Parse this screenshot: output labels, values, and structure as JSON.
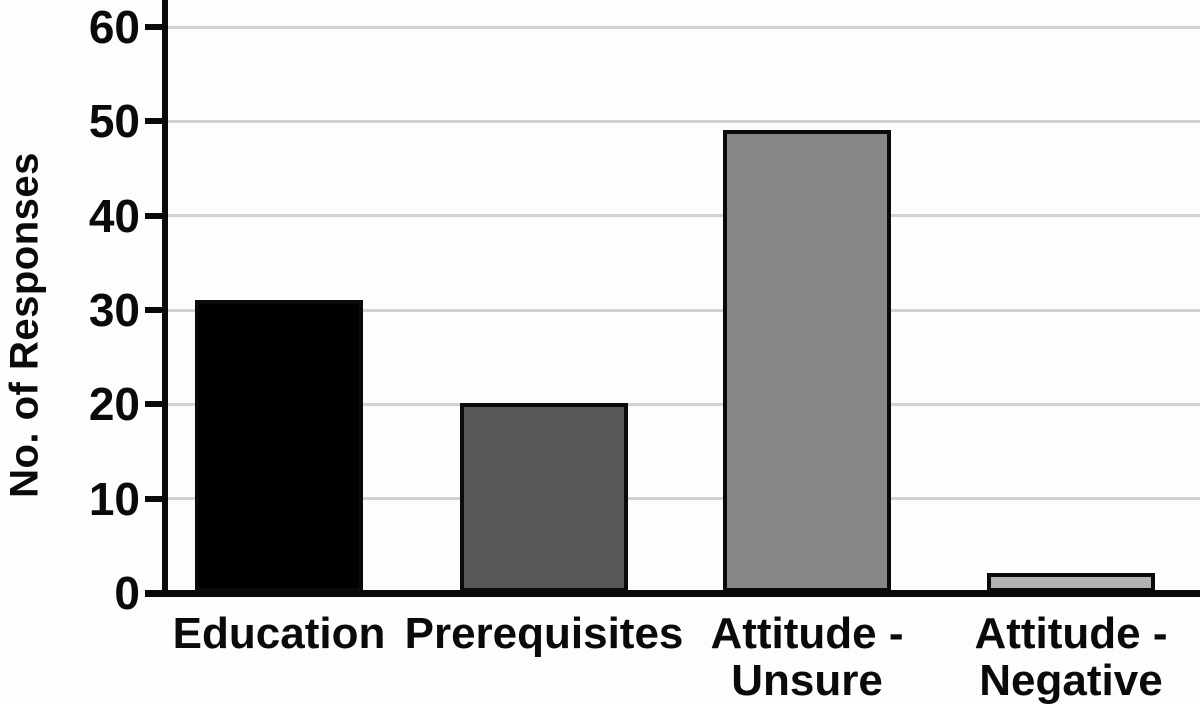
{
  "chart_data": {
    "type": "bar",
    "categories": [
      "Education",
      "Prerequisites",
      "Attitude -\nUnsure",
      "Attitude -\nNegative"
    ],
    "values": [
      31,
      20,
      49,
      2
    ],
    "bar_colors": [
      "#000000",
      "#575757",
      "#868686",
      "#b3b3b3"
    ],
    "bar_border_color": "#0a0a0a",
    "title": "",
    "xlabel": "",
    "ylabel": "No. of Responses",
    "yticks": [
      0,
      10,
      20,
      30,
      40,
      50,
      60
    ],
    "ylim": [
      0,
      63
    ],
    "grid": true,
    "gridline_color": "#d2d2d2",
    "axis_color": "#0a0a0a",
    "background": "#fdfdfd",
    "legend": null
  }
}
